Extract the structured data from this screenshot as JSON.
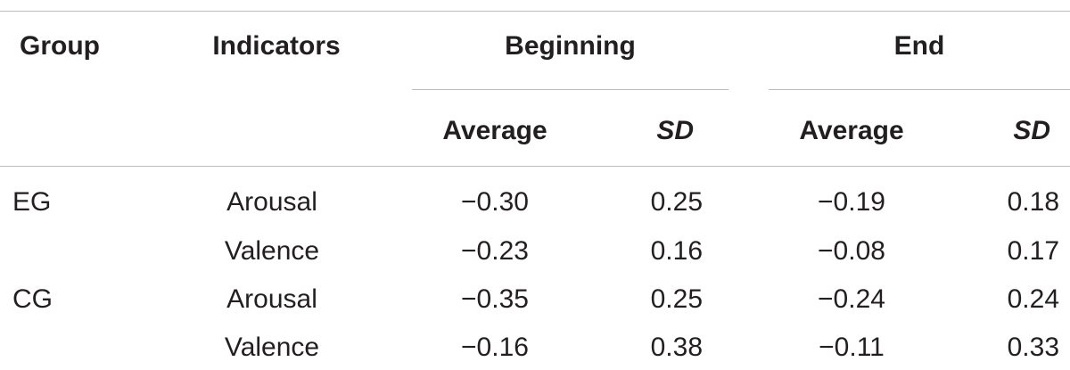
{
  "table": {
    "headers": {
      "group": "Group",
      "indicators": "Indicators",
      "beginning": "Beginning",
      "end": "End",
      "beginning_average": "Average",
      "beginning_sd": "SD",
      "end_average": "Average",
      "end_sd": "SD"
    },
    "rows": [
      {
        "group": "EG",
        "indicator": "Arousal",
        "beginning_average": "−0.30",
        "beginning_sd": "0.25",
        "end_average": "−0.19",
        "end_sd": "0.18"
      },
      {
        "group": "",
        "indicator": "Valence",
        "beginning_average": "−0.23",
        "beginning_sd": "0.16",
        "end_average": "−0.08",
        "end_sd": "0.17"
      },
      {
        "group": "CG",
        "indicator": "Arousal",
        "beginning_average": "−0.35",
        "beginning_sd": "0.25",
        "end_average": "−0.24",
        "end_sd": "0.24"
      },
      {
        "group": "",
        "indicator": "Valence",
        "beginning_average": "−0.16",
        "beginning_sd": "0.38",
        "end_average": "−0.11",
        "end_sd": "0.33"
      }
    ]
  }
}
